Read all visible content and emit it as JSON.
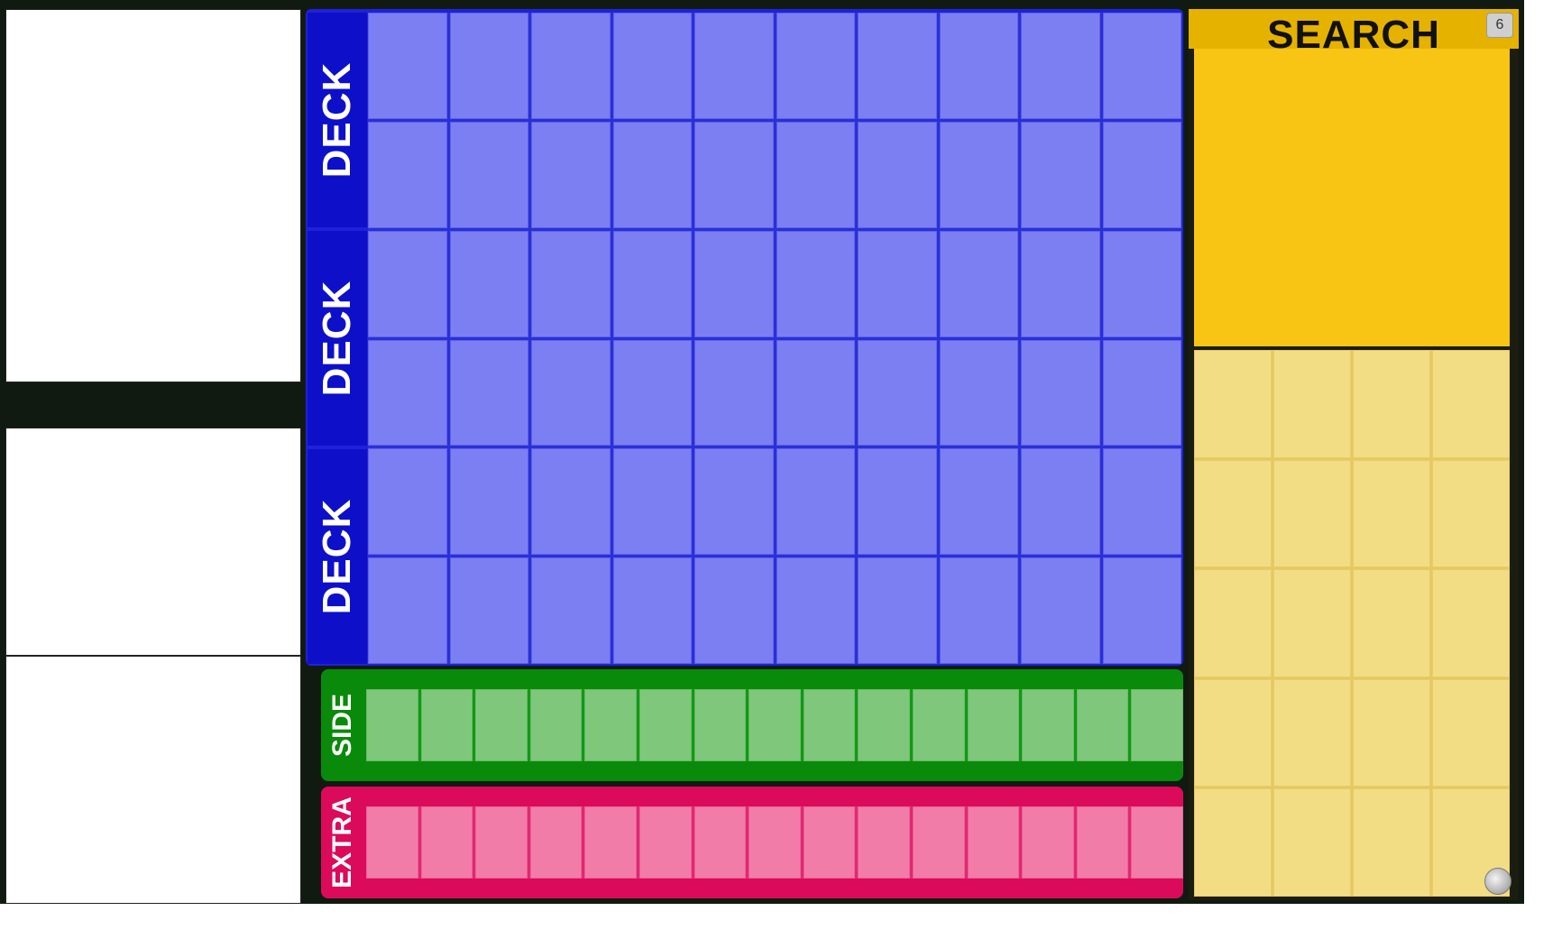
{
  "info_panels": [
    "card-image-panel",
    "card-details-panel",
    "card-text-panel"
  ],
  "deck": {
    "labels": [
      "DECK",
      "DECK",
      "DECK"
    ],
    "rows": 6,
    "columns": 10,
    "color": "#7b7ff2"
  },
  "side": {
    "label": "SIDE",
    "slots": 15,
    "color": "#7fc87b"
  },
  "extra": {
    "label": "EXTRA",
    "slots": 15,
    "color": "#f27ca8"
  },
  "search": {
    "title": "SEARCH",
    "top_icon": "6",
    "rows": 5,
    "columns": 4,
    "color": "#f9c515",
    "scroll_icon": "scroll-knob-icon"
  }
}
